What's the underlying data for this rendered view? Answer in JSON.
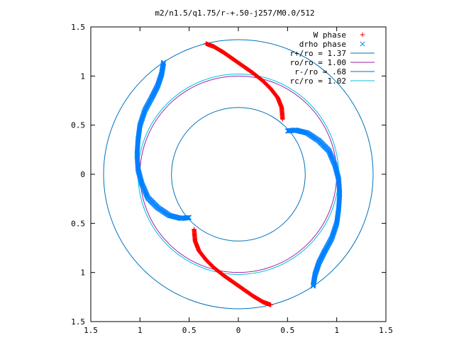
{
  "chart_data": {
    "type": "scatter",
    "title": "m2/n1.5/q1.75/r-+.50-j257/M0.0/512",
    "xlim": [
      -1.5,
      1.5
    ],
    "ylim": [
      -1.5,
      1.5
    ],
    "grid": false,
    "legend_position": "top-right",
    "x_ticks": [
      "1.5",
      "1",
      "0.5",
      "0",
      "0.5",
      "1",
      "1.5"
    ],
    "y_ticks": [
      "1.5",
      "1",
      "0.5",
      "0",
      "0.5",
      "1",
      "1.5"
    ],
    "series": [
      {
        "name": "W phase",
        "marker": "+",
        "color": "#ff0000",
        "points": [
          [
            -0.33,
            1.33
          ],
          [
            -0.25,
            1.3
          ],
          [
            -0.15,
            1.24
          ],
          [
            -0.05,
            1.17
          ],
          [
            0.05,
            1.1
          ],
          [
            0.15,
            1.03
          ],
          [
            0.25,
            0.95
          ],
          [
            0.33,
            0.87
          ],
          [
            0.4,
            0.78
          ],
          [
            0.44,
            0.68
          ],
          [
            0.45,
            0.56
          ],
          [
            0.33,
            -1.33
          ],
          [
            0.25,
            -1.3
          ],
          [
            0.15,
            -1.24
          ],
          [
            0.05,
            -1.17
          ],
          [
            -0.05,
            -1.1
          ],
          [
            -0.15,
            -1.03
          ],
          [
            -0.25,
            -0.95
          ],
          [
            -0.33,
            -0.87
          ],
          [
            -0.4,
            -0.78
          ],
          [
            -0.44,
            -0.68
          ],
          [
            -0.45,
            -0.56
          ]
        ]
      },
      {
        "name": "drho phase",
        "marker": "x",
        "color": "#0080ff",
        "points": [
          [
            -0.76,
            1.14
          ],
          [
            -0.78,
            1.02
          ],
          [
            -0.82,
            0.9
          ],
          [
            -0.88,
            0.78
          ],
          [
            -0.95,
            0.65
          ],
          [
            -1.0,
            0.5
          ],
          [
            -1.02,
            0.35
          ],
          [
            -1.03,
            0.2
          ],
          [
            -1.02,
            0.05
          ],
          [
            -0.98,
            -0.1
          ],
          [
            -0.92,
            -0.24
          ],
          [
            -0.82,
            -0.34
          ],
          [
            -0.7,
            -0.42
          ],
          [
            -0.58,
            -0.45
          ],
          [
            -0.5,
            -0.44
          ],
          [
            0.76,
            -1.14
          ],
          [
            0.78,
            -1.02
          ],
          [
            0.82,
            -0.9
          ],
          [
            0.88,
            -0.78
          ],
          [
            0.95,
            -0.65
          ],
          [
            1.0,
            -0.5
          ],
          [
            1.02,
            -0.35
          ],
          [
            1.03,
            -0.2
          ],
          [
            1.02,
            -0.05
          ],
          [
            0.98,
            0.1
          ],
          [
            0.92,
            0.24
          ],
          [
            0.82,
            0.34
          ],
          [
            0.7,
            0.42
          ],
          [
            0.58,
            0.45
          ],
          [
            0.5,
            0.44
          ]
        ]
      }
    ],
    "circles": [
      {
        "name": "r+/ro = 1.37",
        "r": 1.37,
        "color": "#0072bd"
      },
      {
        "name": "ro/ro = 1.00",
        "r": 1.0,
        "color": "#a020a0"
      },
      {
        "name": "r-/ro = .68",
        "r": 0.68,
        "color": "#0072bd"
      },
      {
        "name": "rc/ro = 1.02",
        "r": 1.02,
        "color": "#00c0e0"
      }
    ]
  }
}
